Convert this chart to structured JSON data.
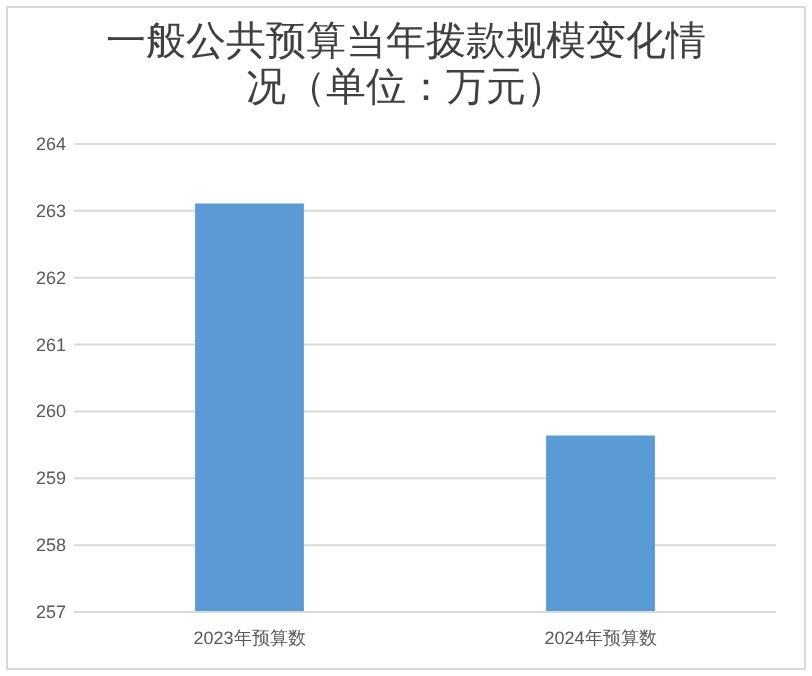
{
  "chart_data": {
    "type": "bar",
    "title": "一般公共预算当年拨款规模变化情况（单位：万元）",
    "categories": [
      "2023年预算数",
      "2024年预算数"
    ],
    "values": [
      263.11,
      259.64
    ],
    "color": "#5b9bd5",
    "ylim": [
      257,
      264
    ],
    "yticks": [
      257,
      258,
      259,
      260,
      261,
      262,
      263,
      264
    ],
    "grid": "y"
  }
}
